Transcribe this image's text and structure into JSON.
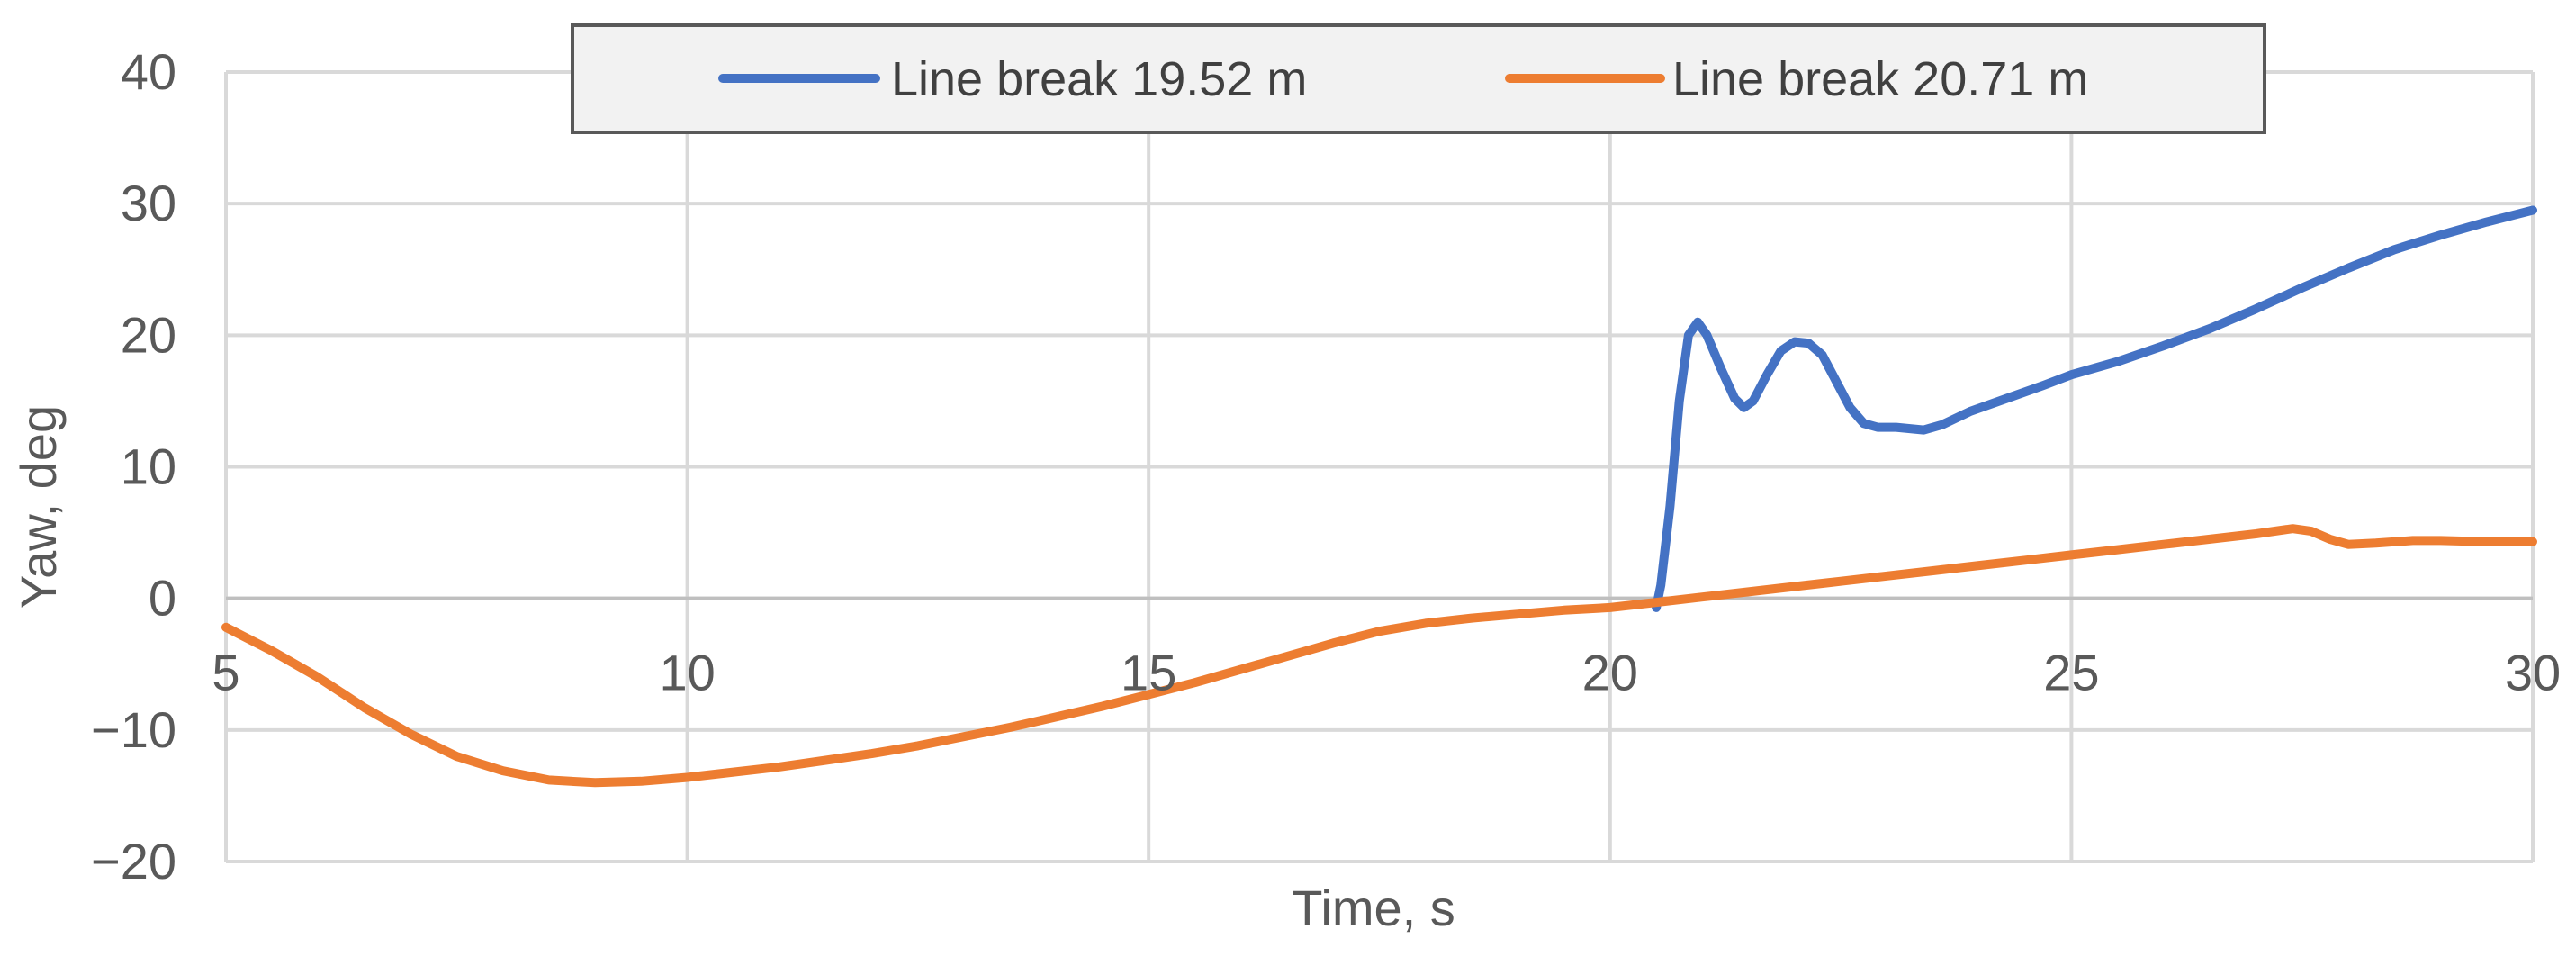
{
  "chart_data": {
    "type": "line",
    "title": "",
    "xlabel": "Time, s",
    "ylabel": "Yaw, deg",
    "xlim": [
      5,
      30
    ],
    "ylim": [
      -20,
      40
    ],
    "x_ticks": [
      5,
      10,
      15,
      20,
      25,
      30
    ],
    "y_ticks": [
      -20,
      -10,
      0,
      10,
      20,
      30,
      40
    ],
    "x_tick_labels": [
      "5",
      "10",
      "15",
      "20",
      "25",
      "30"
    ],
    "y_tick_labels": [
      "−20",
      "−10",
      "0",
      "10",
      "20",
      "30",
      "40"
    ],
    "grid": true,
    "legend_position": "top-center",
    "series": [
      {
        "name": "Line break 19.52 m",
        "color": "#4472C4",
        "points": [
          [
            20.5,
            -0.7
          ],
          [
            20.55,
            1.0
          ],
          [
            20.65,
            7.0
          ],
          [
            20.75,
            15.0
          ],
          [
            20.85,
            20.0
          ],
          [
            20.95,
            21.0
          ],
          [
            21.05,
            20.0
          ],
          [
            21.2,
            17.5
          ],
          [
            21.35,
            15.2
          ],
          [
            21.45,
            14.5
          ],
          [
            21.55,
            15.0
          ],
          [
            21.7,
            17.0
          ],
          [
            21.85,
            18.8
          ],
          [
            22.0,
            19.5
          ],
          [
            22.15,
            19.4
          ],
          [
            22.3,
            18.5
          ],
          [
            22.45,
            16.5
          ],
          [
            22.6,
            14.5
          ],
          [
            22.75,
            13.3
          ],
          [
            22.9,
            13.0
          ],
          [
            23.1,
            13.0
          ],
          [
            23.4,
            12.8
          ],
          [
            23.6,
            13.2
          ],
          [
            23.9,
            14.2
          ],
          [
            24.3,
            15.2
          ],
          [
            24.7,
            16.2
          ],
          [
            25.0,
            17.0
          ],
          [
            25.5,
            18.0
          ],
          [
            26.0,
            19.2
          ],
          [
            26.5,
            20.5
          ],
          [
            27.0,
            22.0
          ],
          [
            27.5,
            23.6
          ],
          [
            28.0,
            25.1
          ],
          [
            28.5,
            26.5
          ],
          [
            29.0,
            27.6
          ],
          [
            29.5,
            28.6
          ],
          [
            30.0,
            29.5
          ]
        ]
      },
      {
        "name": "Line break 20.71 m",
        "color": "#ED7D31",
        "points": [
          [
            5.0,
            -2.2
          ],
          [
            5.5,
            -4.0
          ],
          [
            6.0,
            -6.0
          ],
          [
            6.5,
            -8.3
          ],
          [
            7.0,
            -10.3
          ],
          [
            7.5,
            -12.0
          ],
          [
            8.0,
            -13.1
          ],
          [
            8.5,
            -13.8
          ],
          [
            9.0,
            -14.0
          ],
          [
            9.5,
            -13.9
          ],
          [
            10.0,
            -13.6
          ],
          [
            10.5,
            -13.2
          ],
          [
            11.0,
            -12.8
          ],
          [
            11.5,
            -12.3
          ],
          [
            12.0,
            -11.8
          ],
          [
            12.5,
            -11.2
          ],
          [
            13.0,
            -10.5
          ],
          [
            13.5,
            -9.8
          ],
          [
            14.0,
            -9.0
          ],
          [
            14.5,
            -8.2
          ],
          [
            15.0,
            -7.3
          ],
          [
            15.5,
            -6.4
          ],
          [
            16.0,
            -5.4
          ],
          [
            16.5,
            -4.4
          ],
          [
            17.0,
            -3.4
          ],
          [
            17.5,
            -2.5
          ],
          [
            18.0,
            -1.9
          ],
          [
            18.5,
            -1.5
          ],
          [
            19.0,
            -1.2
          ],
          [
            19.5,
            -0.9
          ],
          [
            20.0,
            -0.7
          ],
          [
            20.5,
            -0.3
          ],
          [
            21.0,
            0.1
          ],
          [
            21.5,
            0.5
          ],
          [
            22.0,
            0.9
          ],
          [
            22.5,
            1.3
          ],
          [
            23.0,
            1.7
          ],
          [
            23.5,
            2.1
          ],
          [
            24.0,
            2.5
          ],
          [
            24.5,
            2.9
          ],
          [
            25.0,
            3.3
          ],
          [
            25.5,
            3.7
          ],
          [
            26.0,
            4.1
          ],
          [
            26.5,
            4.5
          ],
          [
            27.0,
            4.9
          ],
          [
            27.4,
            5.3
          ],
          [
            27.6,
            5.1
          ],
          [
            27.8,
            4.5
          ],
          [
            28.0,
            4.1
          ],
          [
            28.3,
            4.2
          ],
          [
            28.7,
            4.4
          ],
          [
            29.0,
            4.4
          ],
          [
            29.5,
            4.3
          ],
          [
            30.0,
            4.3
          ]
        ]
      }
    ]
  }
}
